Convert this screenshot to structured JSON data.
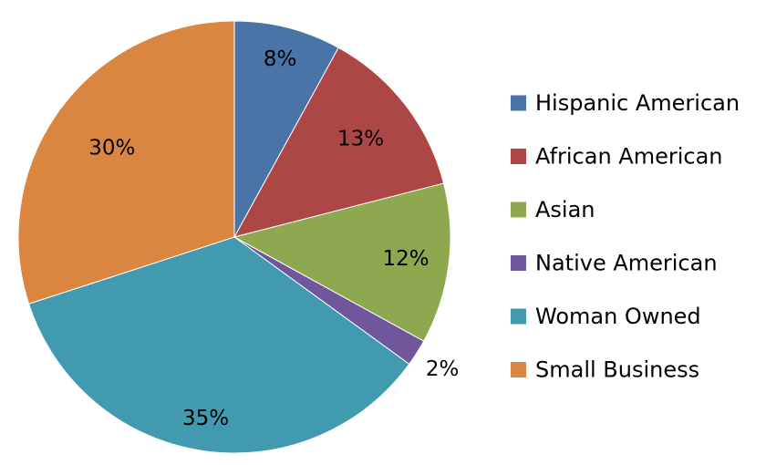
{
  "chart_data": {
    "type": "pie",
    "title": "",
    "start": "12 o'clock, clockwise",
    "legend_position": "right",
    "slices": [
      {
        "name": "Hispanic American",
        "value": 8,
        "label": "8%",
        "color": "#4a74a8"
      },
      {
        "name": "African American",
        "value": 13,
        "label": "13%",
        "color": "#ac4745"
      },
      {
        "name": "Asian",
        "value": 12,
        "label": "12%",
        "color": "#8ea84f"
      },
      {
        "name": "Native American",
        "value": 2,
        "label": "2%",
        "color": "#70569a"
      },
      {
        "name": "Woman Owned",
        "value": 35,
        "label": "35%",
        "color": "#419aaf"
      },
      {
        "name": "Small Business",
        "value": 30,
        "label": "30%",
        "color": "#db8640"
      }
    ]
  }
}
